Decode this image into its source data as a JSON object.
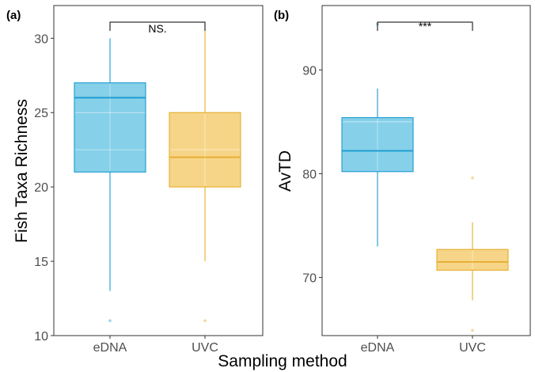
{
  "figure": {
    "xlabel": "Sampling method"
  },
  "colors": {
    "eDNA_fill": "#7fcde8",
    "eDNA_line": "#1a9cd0",
    "UVC_fill": "#f6d382",
    "UVC_line": "#e6ac2a",
    "eDNA_outlier": "#9fd4ee",
    "UVC_outlier": "#f6d7a2"
  },
  "chart_data": [
    {
      "type": "box",
      "panel_label": "(a)",
      "ylabel": "Fish Taxa Richness",
      "categories": [
        "eDNA",
        "UVC"
      ],
      "ylim": [
        10,
        32.2
      ],
      "yticks": [
        10,
        15,
        20,
        25,
        30
      ],
      "grid": false,
      "boxes": [
        {
          "category": "eDNA",
          "whisker_low": 13,
          "q1": 21,
          "median": 26,
          "q3": 27,
          "whisker_high": 30,
          "outliers": [
            11
          ]
        },
        {
          "category": "UVC",
          "whisker_low": 15,
          "q1": 20,
          "median": 22,
          "q3": 25,
          "whisker_high": 31,
          "outliers": [
            11
          ]
        }
      ],
      "significance": {
        "label": "NS.",
        "y": 32
      }
    },
    {
      "type": "box",
      "panel_label": "(b)",
      "ylabel": "AvTD",
      "categories": [
        "eDNA",
        "UVC"
      ],
      "ylim": [
        64.4,
        96.2
      ],
      "yticks": [
        70,
        80,
        90
      ],
      "grid": false,
      "boxes": [
        {
          "category": "eDNA",
          "whisker_low": 73,
          "q1": 80.2,
          "median": 82.2,
          "q3": 85.4,
          "whisker_high": 88.2,
          "outliers": [
            94.4
          ]
        },
        {
          "category": "UVC",
          "whisker_low": 67.8,
          "q1": 70.7,
          "median": 71.5,
          "q3": 72.7,
          "whisker_high": 75.3,
          "outliers": [
            79.6,
            64.9
          ]
        }
      ],
      "significance": {
        "label": "***",
        "y": 95.7
      }
    }
  ]
}
